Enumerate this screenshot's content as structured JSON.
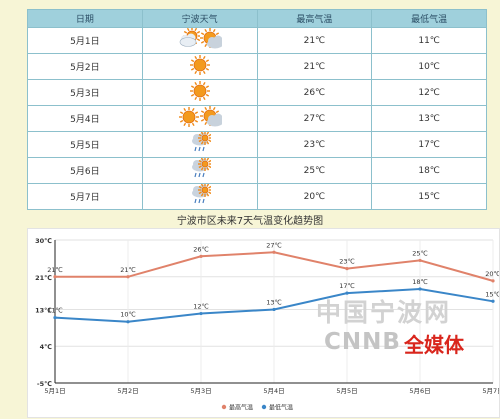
{
  "table": {
    "headers": [
      "日期",
      "宁波天气",
      "最高气温",
      "最低气温"
    ],
    "rows": [
      {
        "date": "5月1日",
        "icons": [
          "partly-cloudy-icon",
          "sun-cloud-icon"
        ],
        "high": "21℃",
        "low": "11℃"
      },
      {
        "date": "5月2日",
        "icons": [
          "sun-icon"
        ],
        "high": "21℃",
        "low": "10℃"
      },
      {
        "date": "5月3日",
        "icons": [
          "sun-icon"
        ],
        "high": "26℃",
        "low": "12℃"
      },
      {
        "date": "5月4日",
        "icons": [
          "sun-icon",
          "sun-cloud-icon"
        ],
        "high": "27℃",
        "low": "13℃"
      },
      {
        "date": "5月5日",
        "icons": [
          "cloud-rain-icon"
        ],
        "high": "23℃",
        "low": "17℃"
      },
      {
        "date": "5月6日",
        "icons": [
          "cloud-rain-icon"
        ],
        "high": "25℃",
        "low": "18℃"
      },
      {
        "date": "5月7日",
        "icons": [
          "cloud-rain-icon"
        ],
        "high": "20℃",
        "low": "15℃"
      }
    ]
  },
  "chart_title": "宁波市区未来7天气温变化趋势图",
  "chart_data": {
    "type": "line",
    "categories": [
      "5月1日",
      "5月2日",
      "5月3日",
      "5月4日",
      "5月5日",
      "5月6日",
      "5月7日"
    ],
    "series": [
      {
        "name": "最高气温",
        "values": [
          21,
          21,
          26,
          27,
          23,
          25,
          20
        ],
        "color": "#e0826a"
      },
      {
        "name": "最低气温",
        "values": [
          11,
          10,
          12,
          13,
          17,
          18,
          15
        ],
        "color": "#3a86c8"
      }
    ],
    "ylim": [
      -5,
      30
    ],
    "yticks": [
      "30℃",
      "21℃",
      "13℃",
      "4℃",
      "-5℃"
    ],
    "ytick_values": [
      30,
      21,
      13,
      4,
      -5
    ],
    "grid": true,
    "legend_position": "bottom-center"
  },
  "watermark": {
    "line1": "中国宁波网",
    "line2": "CNNB",
    "line3": "全媒体"
  }
}
